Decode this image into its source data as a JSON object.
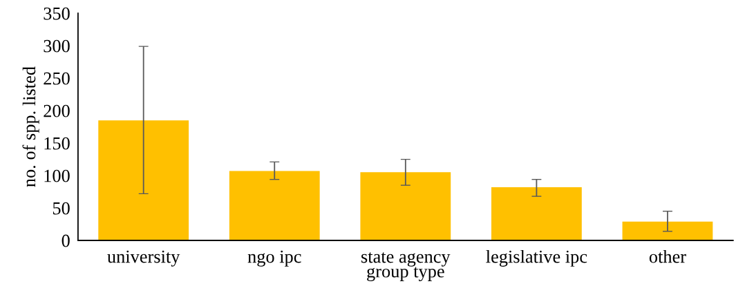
{
  "chart_data": {
    "type": "bar",
    "xlabel": "group type",
    "ylabel": "no. of spp. listed",
    "categories": [
      "university",
      "ngo ipc",
      "state agency",
      "legislative ipc",
      "other"
    ],
    "values": [
      185,
      107,
      105,
      82,
      29
    ],
    "errors": [
      [
        72,
        299
      ],
      [
        94,
        121
      ],
      [
        85,
        125
      ],
      [
        68,
        94
      ],
      [
        14,
        45
      ]
    ],
    "color": "#ffc000",
    "ylim": [
      0,
      350
    ],
    "yticks": [
      0,
      50,
      100,
      150,
      200,
      250,
      300,
      350
    ],
    "grid": false
  }
}
